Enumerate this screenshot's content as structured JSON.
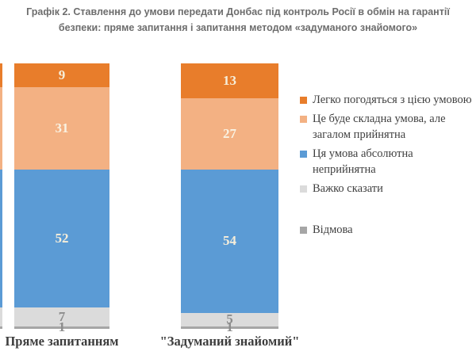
{
  "title": "Графік 2. Ставлення до умови передати Донбас під контроль Росії в обмін на гарантії\nбезпеки: пряме запитання і запитання методом «задуманого знайомого»",
  "colors": {
    "background": "#ffffff",
    "title_text": "#6d6d6d",
    "category_label_text": "#3d3d3d",
    "legend_text": "#3f3f3f",
    "value_label_light": "#f6eeda",
    "value_label_gray": "#8c8c8c"
  },
  "chart_data": {
    "type": "bar",
    "subtype": "stacked-vertical-100pct",
    "categories": [
      "Пряме запитанням",
      "\"Задуманий знайомий\""
    ],
    "series": [
      {
        "name": "Легко погодяться з цією умовою",
        "values": [
          9,
          13
        ],
        "color": "#e87d2b",
        "label_color": "#f6eeda"
      },
      {
        "name": "Це буде складна умова, але загалом прийнятна",
        "values": [
          31,
          27
        ],
        "color": "#f3b183",
        "label_color": "#f9f2e2"
      },
      {
        "name": "Ця умова абсолютна неприйнятна",
        "values": [
          52,
          54
        ],
        "color": "#5b9bd5",
        "label_color": "#f6eeda"
      },
      {
        "name": "Важко сказати",
        "values": [
          7,
          5
        ],
        "color": "#dbdbdb",
        "label_color": "#8c8c8c"
      },
      {
        "name": "Відмова",
        "values": [
          1,
          1
        ],
        "color": "#a6a6a6",
        "label_color": "#8c8c8c"
      }
    ],
    "ylim": [
      0,
      100
    ],
    "grid": false,
    "legend_position": "right",
    "value_labels_shown": true
  }
}
